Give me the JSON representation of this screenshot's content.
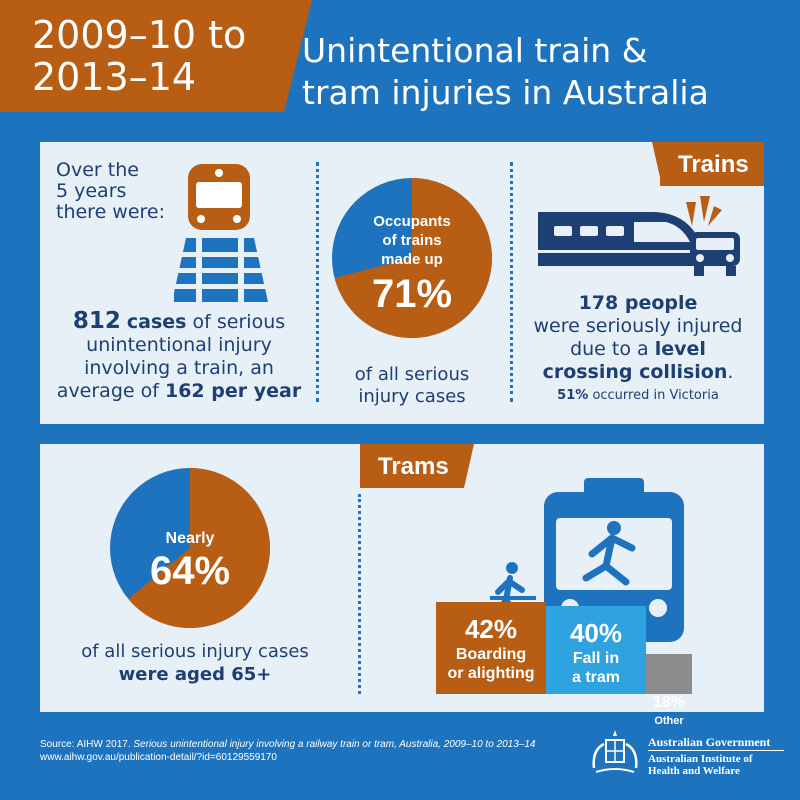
{
  "header": {
    "date_line1": "2009–10 to",
    "date_line2": "2013–14",
    "title_line1": "Unintentional train &",
    "title_line2": "tram injuries in Australia"
  },
  "trains": {
    "tag": "Trains",
    "intro_line1": "Over the",
    "intro_line2": "5 years",
    "intro_line3": "there were:",
    "cases_count": "812",
    "cases_word": "cases",
    "cases_rest": "of serious",
    "cases_line2": "unintentional injury",
    "cases_line3": "involving a train, an",
    "cases_line4_pre": "average of",
    "cases_per_year": "162 per year",
    "occupants_line1": "Occupants",
    "occupants_line2": "of trains",
    "occupants_line3": "made up",
    "occupants_pct": "71%",
    "occupants_fraction": 0.71,
    "occupants_caption1": "of all serious",
    "occupants_caption2": "injury cases",
    "people_count": "178 people",
    "people_line2": "were seriously injured",
    "people_line3_pre": "due to a",
    "people_line3_bold": "level",
    "people_line4_bold": "crossing collision",
    "people_line4_end": ".",
    "victoria_pct": "51%",
    "victoria_rest": "occurred in Victoria"
  },
  "trams": {
    "tag": "Trams",
    "nearly": "Nearly",
    "aged_pct": "64%",
    "aged_fraction": 0.64,
    "aged_caption1": "of all serious injury cases",
    "aged_caption2": "were aged 65+",
    "bars": [
      {
        "pct": "42%",
        "label1": "Boarding",
        "label2": "or alighting",
        "value": 42
      },
      {
        "pct": "40%",
        "label1": "Fall in",
        "label2": "a tram",
        "value": 40
      },
      {
        "pct": "18%",
        "label1": "Other",
        "label2": "",
        "value": 18
      }
    ]
  },
  "colors": {
    "background": "#1e73be",
    "orange": "#b85d14",
    "panel": "#e8f0f7",
    "navy": "#1e3f73",
    "light_blue": "#2ea3e0",
    "grey": "#8c8c8c"
  },
  "footer": {
    "source_pre": "Source: AIHW 2017.",
    "source_title": "Serious unintentional injury involving a railway train or tram, Australia, 2009–10 to 2013–14",
    "url": "www.aihw.gov.au/publication-detail/?id=60129559170",
    "gov_line1": "Australian Government",
    "gov_line2": "Australian Institute of",
    "gov_line3": "Health and Welfare"
  }
}
